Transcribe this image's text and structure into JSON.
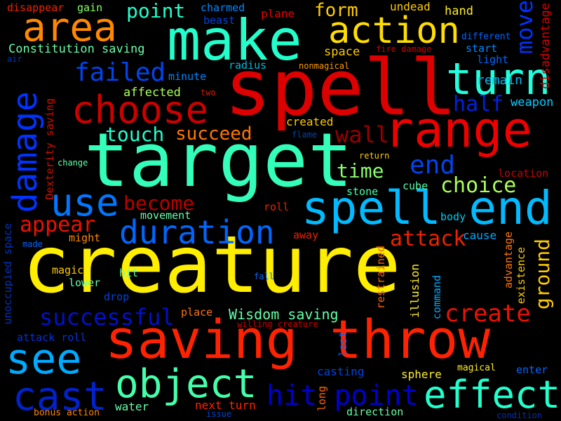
{
  "word_cloud": {
    "background": "#000000",
    "words": [
      {
        "text": "creature",
        "color": "#ffee00"
      },
      {
        "text": "target",
        "color": "#33ffbb"
      },
      {
        "text": "spell",
        "color": "#dd0000"
      },
      {
        "text": "saving throw",
        "color": "#ff2200"
      },
      {
        "text": "make",
        "color": "#22ffcc"
      },
      {
        "text": "range",
        "color": "#ee0000"
      },
      {
        "text": "spell end",
        "color": "#00bbff"
      },
      {
        "text": "area",
        "color": "#ff8800"
      },
      {
        "text": "action",
        "color": "#ffdd00"
      },
      {
        "text": "turn",
        "color": "#22ffdd"
      },
      {
        "text": "choose",
        "color": "#cc0000"
      },
      {
        "text": "damage",
        "color": "#0033ff"
      },
      {
        "text": "use",
        "color": "#0077ff"
      },
      {
        "text": "duration",
        "color": "#0066ff"
      },
      {
        "text": "object",
        "color": "#44ffaa"
      },
      {
        "text": "effect",
        "color": "#22ffcc"
      },
      {
        "text": "cast",
        "color": "#0022cc"
      },
      {
        "text": "see",
        "color": "#00aaff"
      },
      {
        "text": "hit point",
        "color": "#0000cc"
      },
      {
        "text": "successful",
        "color": "#0011cc"
      },
      {
        "text": "create",
        "color": "#ee1100"
      },
      {
        "text": "move",
        "color": "#0033ff"
      },
      {
        "text": "failed",
        "color": "#0044ee"
      },
      {
        "text": "point",
        "color": "#22ffcc"
      },
      {
        "text": "form",
        "color": "#ffcc00"
      },
      {
        "text": "appear",
        "color": "#ee1100"
      },
      {
        "text": "become",
        "color": "#bb0000"
      },
      {
        "text": "attack",
        "color": "#ee2200"
      },
      {
        "text": "choice",
        "color": "#aaff55"
      },
      {
        "text": "end",
        "color": "#0044ee"
      },
      {
        "text": "wall",
        "color": "#990000"
      },
      {
        "text": "succeed",
        "color": "#ff7700"
      },
      {
        "text": "touch",
        "color": "#22ffcc"
      },
      {
        "text": "half",
        "color": "#0022dd"
      },
      {
        "text": "time",
        "color": "#88ff66"
      },
      {
        "text": "ground",
        "color": "#ffcc00"
      },
      {
        "text": "Wisdom saving",
        "color": "#66ffaa"
      },
      {
        "text": "Constitution saving",
        "color": "#66ffaa"
      },
      {
        "text": "remain",
        "color": "#00bbee"
      },
      {
        "text": "weapon",
        "color": "#00ccff"
      },
      {
        "text": "disadvantage",
        "color": "#dd0000"
      },
      {
        "text": "different",
        "color": "#0066ff"
      },
      {
        "text": "start",
        "color": "#0088ff"
      },
      {
        "text": "light",
        "color": "#0066ff"
      },
      {
        "text": "fire damage",
        "color": "#cc0000"
      },
      {
        "text": "undead",
        "color": "#ffcc00"
      },
      {
        "text": "hand",
        "color": "#ffee22"
      },
      {
        "text": "plane",
        "color": "#ee0000"
      },
      {
        "text": "charmed",
        "color": "#0088ff"
      },
      {
        "text": "beast",
        "color": "#0044dd"
      },
      {
        "text": "gain",
        "color": "#88ff66"
      },
      {
        "text": "disappear",
        "color": "#ee2200"
      },
      {
        "text": "space",
        "color": "#ffcc00"
      },
      {
        "text": "radius",
        "color": "#00bbdd"
      },
      {
        "text": "nonmagical",
        "color": "#ff9900"
      },
      {
        "text": "minute",
        "color": "#0088ff"
      },
      {
        "text": "affected",
        "color": "#aaff55"
      },
      {
        "text": "two",
        "color": "#cc2200"
      },
      {
        "text": "air",
        "color": "#0033bb"
      },
      {
        "text": "created",
        "color": "#ffcc00"
      },
      {
        "text": "flame",
        "color": "#0044aa"
      },
      {
        "text": "return",
        "color": "#ffcc00"
      },
      {
        "text": "location",
        "color": "#cc0000"
      },
      {
        "text": "change",
        "color": "#66ffaa"
      },
      {
        "text": "Dexterity saving",
        "color": "#cc1100"
      },
      {
        "text": "stone",
        "color": "#44ffaa"
      },
      {
        "text": "cube",
        "color": "#55ffaa"
      },
      {
        "text": "body",
        "color": "#00ccee"
      },
      {
        "text": "cause",
        "color": "#00aaff"
      },
      {
        "text": "movement",
        "color": "#66ffaa"
      },
      {
        "text": "roll",
        "color": "#ee2200"
      },
      {
        "text": "away",
        "color": "#ee2200"
      },
      {
        "text": "might",
        "color": "#ff8800"
      },
      {
        "text": "made",
        "color": "#0066ff"
      },
      {
        "text": "unoccupied space",
        "color": "#0033bb"
      },
      {
        "text": "magic",
        "color": "#ffcc00"
      },
      {
        "text": "lower",
        "color": "#66ffaa"
      },
      {
        "text": "hit",
        "color": "#66ffaa"
      },
      {
        "text": "fall",
        "color": "#0066ff"
      },
      {
        "text": "drop",
        "color": "#0044dd"
      },
      {
        "text": "place",
        "color": "#ff7700"
      },
      {
        "text": "restrained",
        "color": "#ff6600"
      },
      {
        "text": "illusion",
        "color": "#ffee22"
      },
      {
        "text": "command",
        "color": "#00aaff"
      },
      {
        "text": "advantage",
        "color": "#ff7700"
      },
      {
        "text": "existence",
        "color": "#ffcc00"
      },
      {
        "text": "willing creature",
        "color": "#cc0000"
      },
      {
        "text": "attack roll",
        "color": "#0033dd"
      },
      {
        "text": "last",
        "color": "#0066ff"
      },
      {
        "text": "long",
        "color": "#ff6600"
      },
      {
        "text": "casting",
        "color": "#0044dd"
      },
      {
        "text": "sphere",
        "color": "#ffee22"
      },
      {
        "text": "magical",
        "color": "#ffee22"
      },
      {
        "text": "enter",
        "color": "#0066ff"
      },
      {
        "text": "water",
        "color": "#66ffaa"
      },
      {
        "text": "next turn",
        "color": "#ff2200"
      },
      {
        "text": "direction",
        "color": "#66ffaa"
      },
      {
        "text": "bonus action",
        "color": "#ff8800"
      },
      {
        "text": "issue",
        "color": "#0044cc"
      },
      {
        "text": "condition",
        "color": "#0033aa"
      }
    ]
  }
}
